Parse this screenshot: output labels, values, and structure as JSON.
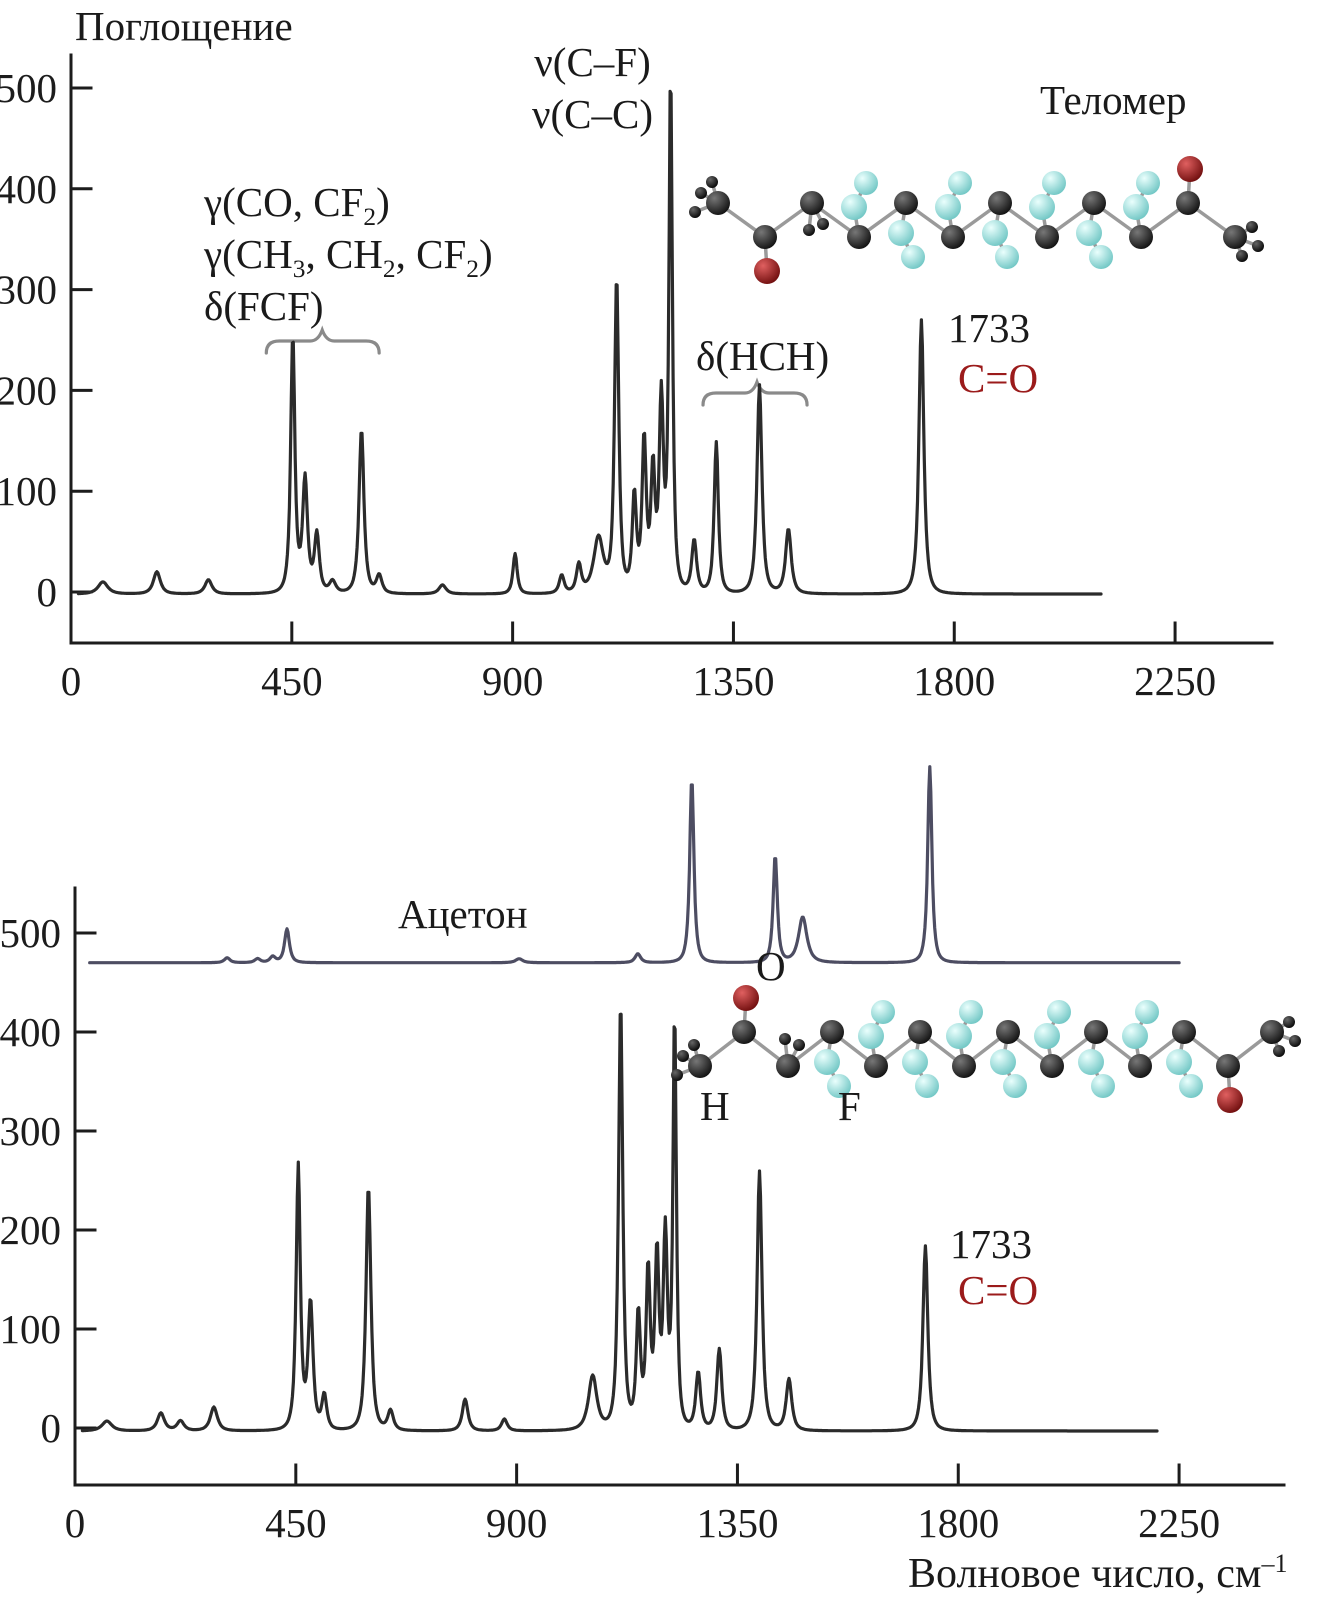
{
  "labels": {
    "y_axis_title": "Поглощение",
    "x_axis_title": {
      "text": "Волновое число, см",
      "sup": "–1"
    },
    "top_chart": {
      "nu_cf": "ν(C–F)",
      "nu_cc": "ν(C–C)",
      "gamma_co": [
        {
          "t": "γ(CO, CF"
        },
        {
          "s": "2"
        },
        {
          "t": ")"
        }
      ],
      "gamma_ch": [
        {
          "t": "γ(CH"
        },
        {
          "s": "3"
        },
        {
          "t": ", CH"
        },
        {
          "s": "2"
        },
        {
          "t": ", CF"
        },
        {
          "s": "2"
        },
        {
          "t": ")"
        }
      ],
      "delta_fcf": "δ(FCF)",
      "delta_hch": "δ(HCH)",
      "molecule_title": "Теломер",
      "carbonyl_wavenumber": "1733",
      "carbonyl_bond": "C=O"
    },
    "bottom_chart": {
      "acetone_label": "Ацетон",
      "atom_o": "O",
      "atom_h": "H",
      "atom_f": "F",
      "carbonyl_wavenumber": "1733",
      "carbonyl_bond": "C=O"
    },
    "colors": {
      "carbonyl_red": "#9b1b1b",
      "spectrum_line": "#2b2b2b",
      "acetone_line": "#4d4d62",
      "axis": "#1c1c1c",
      "brace": "#8a8a8a"
    }
  },
  "chart_data": [
    {
      "id": "telomer-ir-spectrum",
      "type": "line",
      "title": "Теломер",
      "ylabel": "Поглощение",
      "xlabel": "Волновое число, см–1",
      "xlim": [
        0,
        2450
      ],
      "ylim": [
        -30,
        530
      ],
      "grid": false,
      "xticks": [
        0,
        450,
        900,
        1350,
        1800,
        2250
      ],
      "yticks": [
        0,
        100,
        200,
        300,
        400,
        500
      ],
      "band_groups": [
        {
          "range_cm1": [
            398,
            628
          ],
          "nub_cm1": 512,
          "label": "γ(CO, CF2), γ(CH3, CH2, CF2), δ(FCF)"
        },
        {
          "range_cm1": [
            1288,
            1500
          ],
          "nub_cm1": 1398,
          "label": "δ(HCH)"
        }
      ],
      "annotations": [
        "ν(C–F)",
        "ν(C–C)",
        "γ(CO, CF2)",
        "γ(CH3, CH2, CF2)",
        "δ(FCF)",
        "δ(HCH)",
        "1733",
        "C=O",
        "Теломер"
      ],
      "series": [
        {
          "name": "Теломер",
          "color": "#2b2b2b",
          "baseline": -2,
          "x_start": 15,
          "x_end": 2100,
          "peaks": [
            [
              65,
              12,
              14
            ],
            [
              175,
              22,
              10
            ],
            [
              280,
              14,
              10
            ],
            [
              452,
              254,
              6
            ],
            [
              477,
              112,
              7
            ],
            [
              501,
              58,
              7
            ],
            [
              533,
              12,
              9
            ],
            [
              592,
              163,
              7
            ],
            [
              628,
              18,
              8
            ],
            [
              757,
              9,
              10
            ],
            [
              905,
              40,
              6
            ],
            [
              1000,
              18,
              7
            ],
            [
              1035,
              28,
              7
            ],
            [
              1075,
              55,
              14
            ],
            [
              1112,
              312,
              6
            ],
            [
              1148,
              95,
              6
            ],
            [
              1168,
              150,
              6
            ],
            [
              1186,
              118,
              6
            ],
            [
              1203,
              188,
              6
            ],
            [
              1222,
              512,
              5
            ],
            [
              1270,
              52,
              7
            ],
            [
              1315,
              150,
              6
            ],
            [
              1403,
              207,
              7
            ],
            [
              1462,
              64,
              8
            ],
            [
              1733,
              272,
              7
            ]
          ]
        }
      ]
    },
    {
      "id": "telomer-acetone-ir-spectrum",
      "type": "line",
      "title": "Ацетон",
      "ylabel": "",
      "xlabel": "Волновое число, см–1",
      "xlim": [
        0,
        2450
      ],
      "ylim": [
        -30,
        700
      ],
      "grid": false,
      "xticks": [
        0,
        450,
        900,
        1350,
        1800,
        2250
      ],
      "yticks": [
        0,
        100,
        200,
        300,
        400,
        500
      ],
      "band_groups": [],
      "annotations": [
        "Ацетон",
        "O",
        "H",
        "F",
        "1733",
        "C=O"
      ],
      "series": [
        {
          "name": "Ацетон",
          "color": "#4d4d62",
          "baseline": 470,
          "x_start": 30,
          "x_end": 2250,
          "peaks": [
            [
              310,
              5,
              8
            ],
            [
              372,
              4,
              8
            ],
            [
              403,
              6,
              8
            ],
            [
              432,
              34,
              7
            ],
            [
              905,
              4,
              10
            ],
            [
              1147,
              9,
              8
            ],
            [
              1257,
              186,
              6
            ],
            [
              1427,
              108,
              6
            ],
            [
              1483,
              46,
              12
            ],
            [
              1742,
              198,
              6
            ]
          ]
        },
        {
          "name": "Теломер",
          "color": "#2b2b2b",
          "baseline": -3,
          "x_start": 15,
          "x_end": 2205,
          "peaks": [
            [
              65,
              10,
              14
            ],
            [
              175,
              18,
              10
            ],
            [
              215,
              10,
              10
            ],
            [
              283,
              24,
              10
            ],
            [
              455,
              267,
              6
            ],
            [
              480,
              128,
              7
            ],
            [
              508,
              35,
              7
            ],
            [
              598,
              247,
              7
            ],
            [
              643,
              20,
              8
            ],
            [
              795,
              32,
              8
            ],
            [
              875,
              12,
              8
            ],
            [
              1055,
              55,
              12
            ],
            [
              1112,
              433,
              6
            ],
            [
              1148,
              115,
              6
            ],
            [
              1168,
              158,
              6
            ],
            [
              1186,
              172,
              6
            ],
            [
              1203,
              192,
              6
            ],
            [
              1222,
              416,
              5
            ],
            [
              1270,
              58,
              7
            ],
            [
              1313,
              82,
              7
            ],
            [
              1395,
              262,
              7
            ],
            [
              1455,
              52,
              8
            ],
            [
              1733,
              187,
              7
            ]
          ]
        }
      ]
    }
  ]
}
